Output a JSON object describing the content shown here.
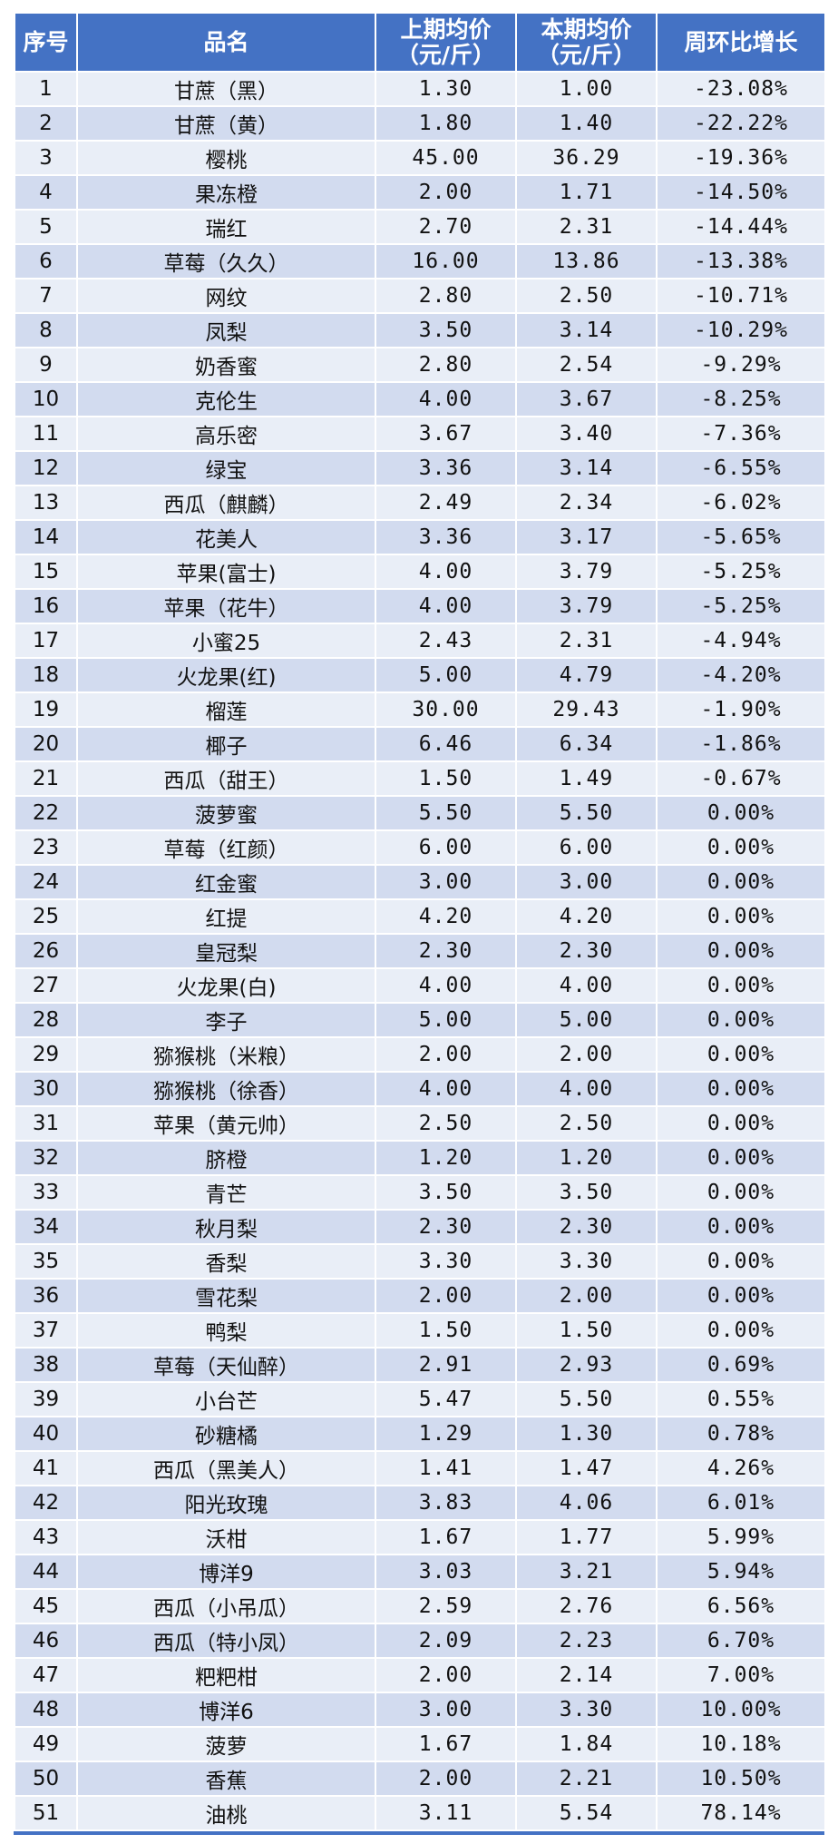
{
  "headers": {
    "index": "序号",
    "name": "品名",
    "prev_price": "上期均价\n（元/斤）",
    "curr_price": "本期均价\n（元/斤）",
    "change": "周环比增长"
  },
  "rows": [
    [
      "1",
      "甘蔗（黑）",
      "1.30",
      "1.00",
      "-23.08%"
    ],
    [
      "2",
      "甘蔗（黄）",
      "1.80",
      "1.40",
      "-22.22%"
    ],
    [
      "3",
      "樱桃",
      "45.00",
      "36.29",
      "-19.36%"
    ],
    [
      "4",
      "果冻橙",
      "2.00",
      "1.71",
      "-14.50%"
    ],
    [
      "5",
      "瑞红",
      "2.70",
      "2.31",
      "-14.44%"
    ],
    [
      "6",
      "草莓（久久）",
      "16.00",
      "13.86",
      "-13.38%"
    ],
    [
      "7",
      "网纹",
      "2.80",
      "2.50",
      "-10.71%"
    ],
    [
      "8",
      "凤梨",
      "3.50",
      "3.14",
      "-10.29%"
    ],
    [
      "9",
      "奶香蜜",
      "2.80",
      "2.54",
      "-9.29%"
    ],
    [
      "10",
      "克伦生",
      "4.00",
      "3.67",
      "-8.25%"
    ],
    [
      "11",
      "高乐密",
      "3.67",
      "3.40",
      "-7.36%"
    ],
    [
      "12",
      "绿宝",
      "3.36",
      "3.14",
      "-6.55%"
    ],
    [
      "13",
      "西瓜（麒麟）",
      "2.49",
      "2.34",
      "-6.02%"
    ],
    [
      "14",
      "花美人",
      "3.36",
      "3.17",
      "-5.65%"
    ],
    [
      "15",
      "苹果(富士)",
      "4.00",
      "3.79",
      "-5.25%"
    ],
    [
      "16",
      "苹果（花牛）",
      "4.00",
      "3.79",
      "-5.25%"
    ],
    [
      "17",
      "小蜜25",
      "2.43",
      "2.31",
      "-4.94%"
    ],
    [
      "18",
      "火龙果(红)",
      "5.00",
      "4.79",
      "-4.20%"
    ],
    [
      "19",
      "榴莲",
      "30.00",
      "29.43",
      "-1.90%"
    ],
    [
      "20",
      "椰子",
      "6.46",
      "6.34",
      "-1.86%"
    ],
    [
      "21",
      "西瓜（甜王）",
      "1.50",
      "1.49",
      "-0.67%"
    ],
    [
      "22",
      "菠萝蜜",
      "5.50",
      "5.50",
      "0.00%"
    ],
    [
      "23",
      "草莓（红颜）",
      "6.00",
      "6.00",
      "0.00%"
    ],
    [
      "24",
      "红金蜜",
      "3.00",
      "3.00",
      "0.00%"
    ],
    [
      "25",
      "红提",
      "4.20",
      "4.20",
      "0.00%"
    ],
    [
      "26",
      "皇冠梨",
      "2.30",
      "2.30",
      "0.00%"
    ],
    [
      "27",
      "火龙果(白)",
      "4.00",
      "4.00",
      "0.00%"
    ],
    [
      "28",
      "李子",
      "5.00",
      "5.00",
      "0.00%"
    ],
    [
      "29",
      "猕猴桃（米粮）",
      "2.00",
      "2.00",
      "0.00%"
    ],
    [
      "30",
      "猕猴桃（徐香）",
      "4.00",
      "4.00",
      "0.00%"
    ],
    [
      "31",
      "苹果（黄元帅）",
      "2.50",
      "2.50",
      "0.00%"
    ],
    [
      "32",
      "脐橙",
      "1.20",
      "1.20",
      "0.00%"
    ],
    [
      "33",
      "青芒",
      "3.50",
      "3.50",
      "0.00%"
    ],
    [
      "34",
      "秋月梨",
      "2.30",
      "2.30",
      "0.00%"
    ],
    [
      "35",
      "香梨",
      "3.30",
      "3.30",
      "0.00%"
    ],
    [
      "36",
      "雪花梨",
      "2.00",
      "2.00",
      "0.00%"
    ],
    [
      "37",
      "鸭梨",
      "1.50",
      "1.50",
      "0.00%"
    ],
    [
      "38",
      "草莓（天仙醉）",
      "2.91",
      "2.93",
      "0.69%"
    ],
    [
      "39",
      "小台芒",
      "5.47",
      "5.50",
      "0.55%"
    ],
    [
      "40",
      "砂糖橘",
      "1.29",
      "1.30",
      "0.78%"
    ],
    [
      "41",
      "西瓜（黑美人）",
      "1.41",
      "1.47",
      "4.26%"
    ],
    [
      "42",
      "阳光玫瑰",
      "3.83",
      "4.06",
      "6.01%"
    ],
    [
      "43",
      "沃柑",
      "1.67",
      "1.77",
      "5.99%"
    ],
    [
      "44",
      "博洋9",
      "3.03",
      "3.21",
      "5.94%"
    ],
    [
      "45",
      "西瓜（小吊瓜）",
      "2.59",
      "2.76",
      "6.56%"
    ],
    [
      "46",
      "西瓜（特小凤）",
      "2.09",
      "2.23",
      "6.70%"
    ],
    [
      "47",
      "粑粑柑",
      "2.00",
      "2.14",
      "7.00%"
    ],
    [
      "48",
      "博洋6",
      "3.00",
      "3.30",
      "10.00%"
    ],
    [
      "49",
      "菠萝",
      "1.67",
      "1.84",
      "10.18%"
    ],
    [
      "50",
      "香蕉",
      "2.00",
      "2.21",
      "10.50%"
    ],
    [
      "51",
      "油桃",
      "3.11",
      "5.54",
      "78.14%"
    ]
  ],
  "colors": {
    "header_bg": "#4472c4",
    "row_light": "#e9eef7",
    "row_dark": "#d2dbef"
  }
}
